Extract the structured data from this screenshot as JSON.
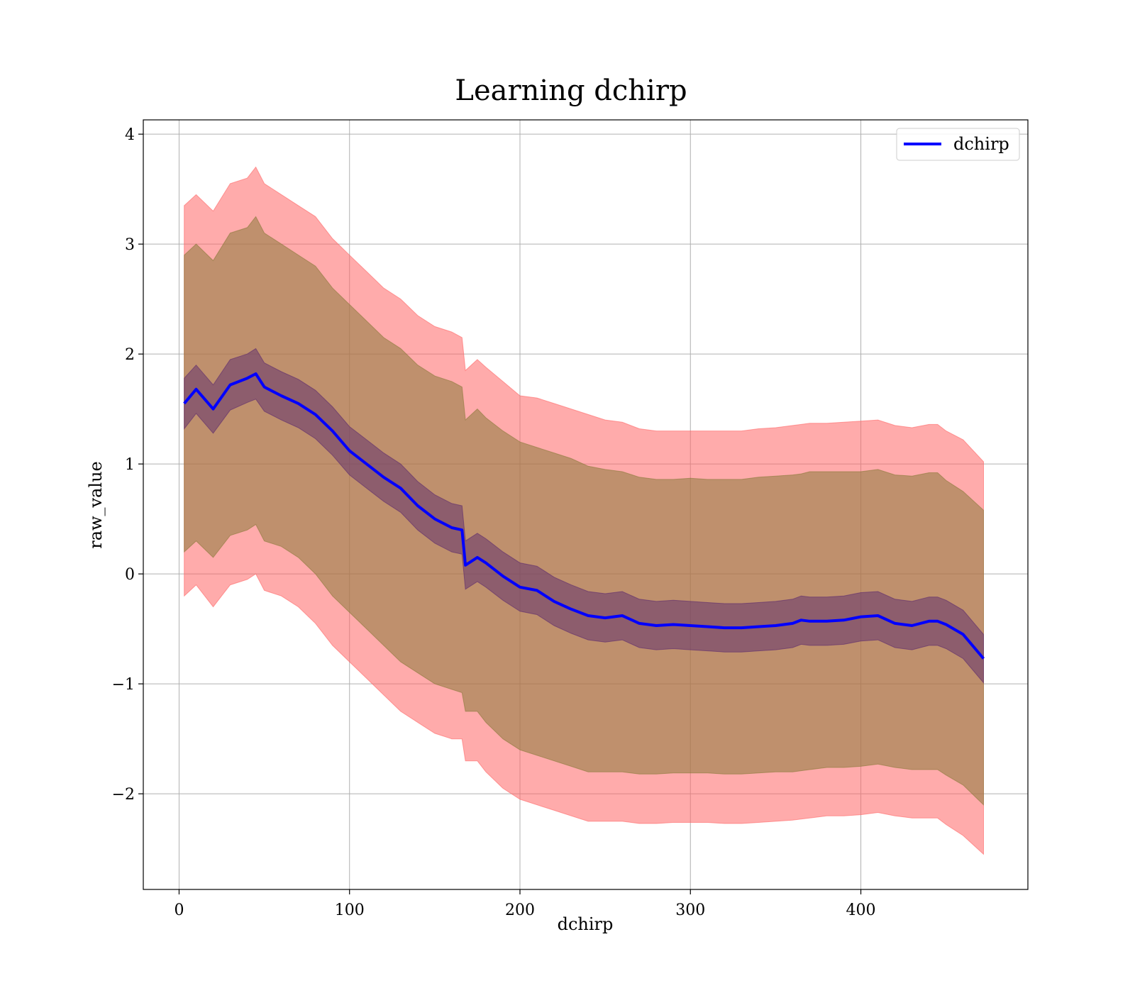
{
  "chart_data": {
    "type": "line",
    "title": "Learning dchirp",
    "xlabel": "dchirp",
    "ylabel": "raw_value",
    "xlim": [
      -21,
      498
    ],
    "ylim": [
      -2.87,
      4.13
    ],
    "grid": true,
    "legend_position": "top-right",
    "x_ticks": [
      0,
      100,
      200,
      300,
      400
    ],
    "x_tick_labels": [
      "0",
      "100",
      "200",
      "300",
      "400"
    ],
    "y_ticks": [
      -2,
      -1,
      0,
      1,
      2,
      3,
      4
    ],
    "y_tick_labels": [
      "−2",
      "−1",
      "0",
      "1",
      "2",
      "3",
      "4"
    ],
    "colors": {
      "line": "#0000ff",
      "outer_band": "#ff6666",
      "middle_band": "#8b7a3a",
      "inner_band": "#5b2a6e"
    },
    "series": [
      {
        "name": "dchirp",
        "x": [
          3,
          10,
          20,
          30,
          40,
          45,
          50,
          60,
          70,
          80,
          90,
          100,
          110,
          120,
          130,
          140,
          150,
          160,
          166,
          168,
          175,
          180,
          190,
          200,
          210,
          220,
          230,
          240,
          250,
          260,
          270,
          280,
          290,
          300,
          310,
          320,
          330,
          340,
          350,
          360,
          365,
          370,
          380,
          390,
          400,
          410,
          420,
          430,
          440,
          445,
          450,
          460,
          472
        ],
        "y": [
          1.55,
          1.68,
          1.5,
          1.72,
          1.78,
          1.82,
          1.7,
          1.62,
          1.55,
          1.45,
          1.3,
          1.12,
          1.0,
          0.88,
          0.78,
          0.62,
          0.5,
          0.42,
          0.4,
          0.08,
          0.15,
          0.1,
          -0.02,
          -0.12,
          -0.15,
          -0.25,
          -0.32,
          -0.38,
          -0.4,
          -0.38,
          -0.45,
          -0.47,
          -0.46,
          -0.47,
          -0.48,
          -0.49,
          -0.49,
          -0.48,
          -0.47,
          -0.45,
          -0.42,
          -0.43,
          -0.43,
          -0.42,
          -0.39,
          -0.38,
          -0.45,
          -0.47,
          -0.43,
          -0.43,
          -0.46,
          -0.55,
          -0.77
        ]
      }
    ],
    "bands": [
      {
        "role": "outer",
        "x": [
          3,
          10,
          20,
          30,
          40,
          45,
          50,
          60,
          70,
          80,
          90,
          100,
          110,
          120,
          130,
          140,
          150,
          160,
          166,
          168,
          175,
          180,
          190,
          200,
          210,
          220,
          230,
          240,
          250,
          260,
          270,
          280,
          290,
          300,
          310,
          320,
          330,
          340,
          350,
          360,
          365,
          370,
          380,
          390,
          400,
          410,
          420,
          430,
          440,
          445,
          450,
          460,
          472
        ],
        "upper": [
          3.35,
          3.45,
          3.3,
          3.55,
          3.6,
          3.7,
          3.55,
          3.45,
          3.35,
          3.25,
          3.05,
          2.9,
          2.75,
          2.6,
          2.5,
          2.35,
          2.25,
          2.2,
          2.15,
          1.85,
          1.95,
          1.88,
          1.75,
          1.62,
          1.6,
          1.55,
          1.5,
          1.45,
          1.4,
          1.38,
          1.32,
          1.3,
          1.3,
          1.3,
          1.3,
          1.3,
          1.3,
          1.32,
          1.33,
          1.35,
          1.36,
          1.37,
          1.37,
          1.38,
          1.39,
          1.4,
          1.35,
          1.33,
          1.36,
          1.36,
          1.3,
          1.22,
          1.02
        ],
        "lower": [
          -0.2,
          -0.1,
          -0.3,
          -0.1,
          -0.05,
          0.0,
          -0.15,
          -0.2,
          -0.3,
          -0.45,
          -0.65,
          -0.8,
          -0.95,
          -1.1,
          -1.25,
          -1.35,
          -1.45,
          -1.5,
          -1.5,
          -1.7,
          -1.7,
          -1.8,
          -1.95,
          -2.05,
          -2.1,
          -2.15,
          -2.2,
          -2.25,
          -2.25,
          -2.25,
          -2.27,
          -2.27,
          -2.26,
          -2.26,
          -2.26,
          -2.27,
          -2.27,
          -2.26,
          -2.25,
          -2.24,
          -2.23,
          -2.22,
          -2.2,
          -2.2,
          -2.19,
          -2.17,
          -2.2,
          -2.22,
          -2.22,
          -2.22,
          -2.28,
          -2.38,
          -2.55
        ]
      },
      {
        "role": "middle",
        "x": [
          3,
          10,
          20,
          30,
          40,
          45,
          50,
          60,
          70,
          80,
          90,
          100,
          110,
          120,
          130,
          140,
          150,
          160,
          166,
          168,
          175,
          180,
          190,
          200,
          210,
          220,
          230,
          240,
          250,
          260,
          270,
          280,
          290,
          300,
          310,
          320,
          330,
          340,
          350,
          360,
          365,
          370,
          380,
          390,
          400,
          410,
          420,
          430,
          440,
          445,
          450,
          460,
          472
        ],
        "upper": [
          2.9,
          3.0,
          2.85,
          3.1,
          3.15,
          3.25,
          3.1,
          3.0,
          2.9,
          2.8,
          2.6,
          2.45,
          2.3,
          2.15,
          2.05,
          1.9,
          1.8,
          1.75,
          1.7,
          1.4,
          1.5,
          1.42,
          1.3,
          1.2,
          1.15,
          1.1,
          1.05,
          0.98,
          0.95,
          0.93,
          0.88,
          0.86,
          0.86,
          0.87,
          0.86,
          0.86,
          0.86,
          0.88,
          0.89,
          0.9,
          0.91,
          0.93,
          0.93,
          0.93,
          0.93,
          0.95,
          0.9,
          0.89,
          0.92,
          0.92,
          0.85,
          0.75,
          0.58
        ],
        "lower": [
          0.2,
          0.3,
          0.15,
          0.35,
          0.4,
          0.45,
          0.3,
          0.25,
          0.15,
          0.0,
          -0.2,
          -0.35,
          -0.5,
          -0.65,
          -0.8,
          -0.9,
          -1.0,
          -1.05,
          -1.08,
          -1.25,
          -1.25,
          -1.35,
          -1.5,
          -1.6,
          -1.65,
          -1.7,
          -1.75,
          -1.8,
          -1.8,
          -1.8,
          -1.82,
          -1.82,
          -1.81,
          -1.81,
          -1.81,
          -1.82,
          -1.82,
          -1.81,
          -1.8,
          -1.8,
          -1.79,
          -1.78,
          -1.76,
          -1.76,
          -1.75,
          -1.73,
          -1.76,
          -1.78,
          -1.78,
          -1.78,
          -1.83,
          -1.92,
          -2.1
        ]
      },
      {
        "role": "inner",
        "x": [
          3,
          10,
          20,
          30,
          40,
          45,
          50,
          60,
          70,
          80,
          90,
          100,
          110,
          120,
          130,
          140,
          150,
          160,
          166,
          168,
          175,
          180,
          190,
          200,
          210,
          220,
          230,
          240,
          250,
          260,
          270,
          280,
          290,
          300,
          310,
          320,
          330,
          340,
          350,
          360,
          365,
          370,
          380,
          390,
          400,
          410,
          420,
          430,
          440,
          445,
          450,
          460,
          472
        ],
        "upper": [
          1.78,
          1.9,
          1.72,
          1.95,
          2.0,
          2.05,
          1.92,
          1.84,
          1.77,
          1.67,
          1.52,
          1.34,
          1.22,
          1.1,
          1.0,
          0.84,
          0.72,
          0.64,
          0.62,
          0.3,
          0.37,
          0.32,
          0.2,
          0.1,
          0.07,
          -0.03,
          -0.1,
          -0.16,
          -0.18,
          -0.16,
          -0.23,
          -0.25,
          -0.24,
          -0.25,
          -0.26,
          -0.27,
          -0.27,
          -0.26,
          -0.25,
          -0.23,
          -0.2,
          -0.21,
          -0.21,
          -0.2,
          -0.17,
          -0.16,
          -0.23,
          -0.25,
          -0.21,
          -0.21,
          -0.24,
          -0.33,
          -0.55
        ],
        "lower": [
          1.32,
          1.46,
          1.28,
          1.49,
          1.56,
          1.59,
          1.48,
          1.4,
          1.33,
          1.23,
          1.08,
          0.9,
          0.78,
          0.66,
          0.56,
          0.4,
          0.28,
          0.2,
          0.18,
          -0.14,
          -0.07,
          -0.12,
          -0.24,
          -0.34,
          -0.37,
          -0.47,
          -0.54,
          -0.6,
          -0.62,
          -0.6,
          -0.67,
          -0.69,
          -0.68,
          -0.69,
          -0.7,
          -0.71,
          -0.71,
          -0.7,
          -0.69,
          -0.67,
          -0.64,
          -0.65,
          -0.65,
          -0.64,
          -0.61,
          -0.6,
          -0.67,
          -0.69,
          -0.65,
          -0.65,
          -0.68,
          -0.77,
          -0.99
        ]
      }
    ]
  }
}
